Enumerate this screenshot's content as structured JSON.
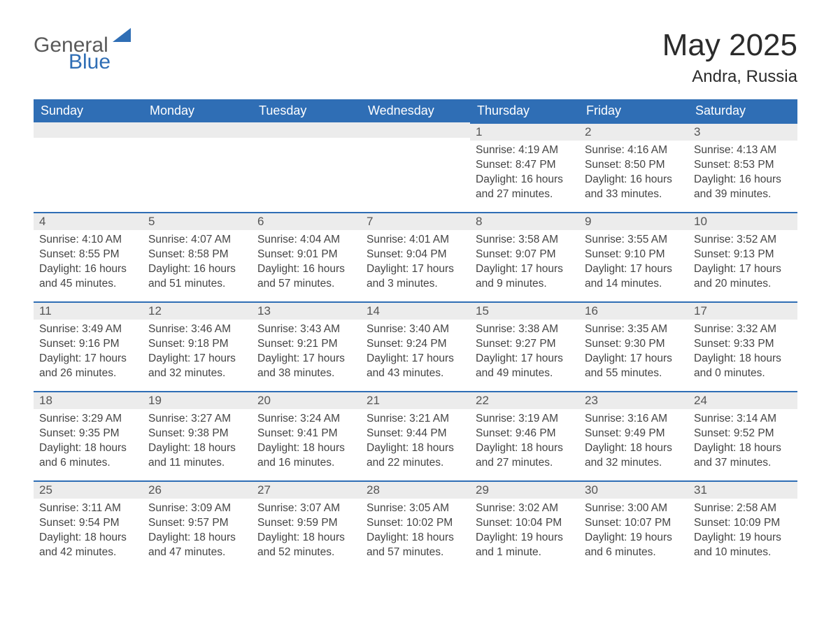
{
  "brand": {
    "word1": "General",
    "word2": "Blue"
  },
  "header": {
    "title": "May 2025",
    "location": "Andra, Russia"
  },
  "colors": {
    "header_bg": "#2f6eb5",
    "header_text": "#ffffff",
    "daynum_bg": "#ececec",
    "daynum_border": "#2f6eb5",
    "body_text": "#444444",
    "title_text": "#2b2b2b"
  },
  "columns": [
    "Sunday",
    "Monday",
    "Tuesday",
    "Wednesday",
    "Thursday",
    "Friday",
    "Saturday"
  ],
  "weeks": [
    [
      null,
      null,
      null,
      null,
      {
        "n": "1",
        "sr": "Sunrise: 4:19 AM",
        "ss": "Sunset: 8:47 PM",
        "dl": "Daylight: 16 hours and 27 minutes."
      },
      {
        "n": "2",
        "sr": "Sunrise: 4:16 AM",
        "ss": "Sunset: 8:50 PM",
        "dl": "Daylight: 16 hours and 33 minutes."
      },
      {
        "n": "3",
        "sr": "Sunrise: 4:13 AM",
        "ss": "Sunset: 8:53 PM",
        "dl": "Daylight: 16 hours and 39 minutes."
      }
    ],
    [
      {
        "n": "4",
        "sr": "Sunrise: 4:10 AM",
        "ss": "Sunset: 8:55 PM",
        "dl": "Daylight: 16 hours and 45 minutes."
      },
      {
        "n": "5",
        "sr": "Sunrise: 4:07 AM",
        "ss": "Sunset: 8:58 PM",
        "dl": "Daylight: 16 hours and 51 minutes."
      },
      {
        "n": "6",
        "sr": "Sunrise: 4:04 AM",
        "ss": "Sunset: 9:01 PM",
        "dl": "Daylight: 16 hours and 57 minutes."
      },
      {
        "n": "7",
        "sr": "Sunrise: 4:01 AM",
        "ss": "Sunset: 9:04 PM",
        "dl": "Daylight: 17 hours and 3 minutes."
      },
      {
        "n": "8",
        "sr": "Sunrise: 3:58 AM",
        "ss": "Sunset: 9:07 PM",
        "dl": "Daylight: 17 hours and 9 minutes."
      },
      {
        "n": "9",
        "sr": "Sunrise: 3:55 AM",
        "ss": "Sunset: 9:10 PM",
        "dl": "Daylight: 17 hours and 14 minutes."
      },
      {
        "n": "10",
        "sr": "Sunrise: 3:52 AM",
        "ss": "Sunset: 9:13 PM",
        "dl": "Daylight: 17 hours and 20 minutes."
      }
    ],
    [
      {
        "n": "11",
        "sr": "Sunrise: 3:49 AM",
        "ss": "Sunset: 9:16 PM",
        "dl": "Daylight: 17 hours and 26 minutes."
      },
      {
        "n": "12",
        "sr": "Sunrise: 3:46 AM",
        "ss": "Sunset: 9:18 PM",
        "dl": "Daylight: 17 hours and 32 minutes."
      },
      {
        "n": "13",
        "sr": "Sunrise: 3:43 AM",
        "ss": "Sunset: 9:21 PM",
        "dl": "Daylight: 17 hours and 38 minutes."
      },
      {
        "n": "14",
        "sr": "Sunrise: 3:40 AM",
        "ss": "Sunset: 9:24 PM",
        "dl": "Daylight: 17 hours and 43 minutes."
      },
      {
        "n": "15",
        "sr": "Sunrise: 3:38 AM",
        "ss": "Sunset: 9:27 PM",
        "dl": "Daylight: 17 hours and 49 minutes."
      },
      {
        "n": "16",
        "sr": "Sunrise: 3:35 AM",
        "ss": "Sunset: 9:30 PM",
        "dl": "Daylight: 17 hours and 55 minutes."
      },
      {
        "n": "17",
        "sr": "Sunrise: 3:32 AM",
        "ss": "Sunset: 9:33 PM",
        "dl": "Daylight: 18 hours and 0 minutes."
      }
    ],
    [
      {
        "n": "18",
        "sr": "Sunrise: 3:29 AM",
        "ss": "Sunset: 9:35 PM",
        "dl": "Daylight: 18 hours and 6 minutes."
      },
      {
        "n": "19",
        "sr": "Sunrise: 3:27 AM",
        "ss": "Sunset: 9:38 PM",
        "dl": "Daylight: 18 hours and 11 minutes."
      },
      {
        "n": "20",
        "sr": "Sunrise: 3:24 AM",
        "ss": "Sunset: 9:41 PM",
        "dl": "Daylight: 18 hours and 16 minutes."
      },
      {
        "n": "21",
        "sr": "Sunrise: 3:21 AM",
        "ss": "Sunset: 9:44 PM",
        "dl": "Daylight: 18 hours and 22 minutes."
      },
      {
        "n": "22",
        "sr": "Sunrise: 3:19 AM",
        "ss": "Sunset: 9:46 PM",
        "dl": "Daylight: 18 hours and 27 minutes."
      },
      {
        "n": "23",
        "sr": "Sunrise: 3:16 AM",
        "ss": "Sunset: 9:49 PM",
        "dl": "Daylight: 18 hours and 32 minutes."
      },
      {
        "n": "24",
        "sr": "Sunrise: 3:14 AM",
        "ss": "Sunset: 9:52 PM",
        "dl": "Daylight: 18 hours and 37 minutes."
      }
    ],
    [
      {
        "n": "25",
        "sr": "Sunrise: 3:11 AM",
        "ss": "Sunset: 9:54 PM",
        "dl": "Daylight: 18 hours and 42 minutes."
      },
      {
        "n": "26",
        "sr": "Sunrise: 3:09 AM",
        "ss": "Sunset: 9:57 PM",
        "dl": "Daylight: 18 hours and 47 minutes."
      },
      {
        "n": "27",
        "sr": "Sunrise: 3:07 AM",
        "ss": "Sunset: 9:59 PM",
        "dl": "Daylight: 18 hours and 52 minutes."
      },
      {
        "n": "28",
        "sr": "Sunrise: 3:05 AM",
        "ss": "Sunset: 10:02 PM",
        "dl": "Daylight: 18 hours and 57 minutes."
      },
      {
        "n": "29",
        "sr": "Sunrise: 3:02 AM",
        "ss": "Sunset: 10:04 PM",
        "dl": "Daylight: 19 hours and 1 minute."
      },
      {
        "n": "30",
        "sr": "Sunrise: 3:00 AM",
        "ss": "Sunset: 10:07 PM",
        "dl": "Daylight: 19 hours and 6 minutes."
      },
      {
        "n": "31",
        "sr": "Sunrise: 2:58 AM",
        "ss": "Sunset: 10:09 PM",
        "dl": "Daylight: 19 hours and 10 minutes."
      }
    ]
  ]
}
